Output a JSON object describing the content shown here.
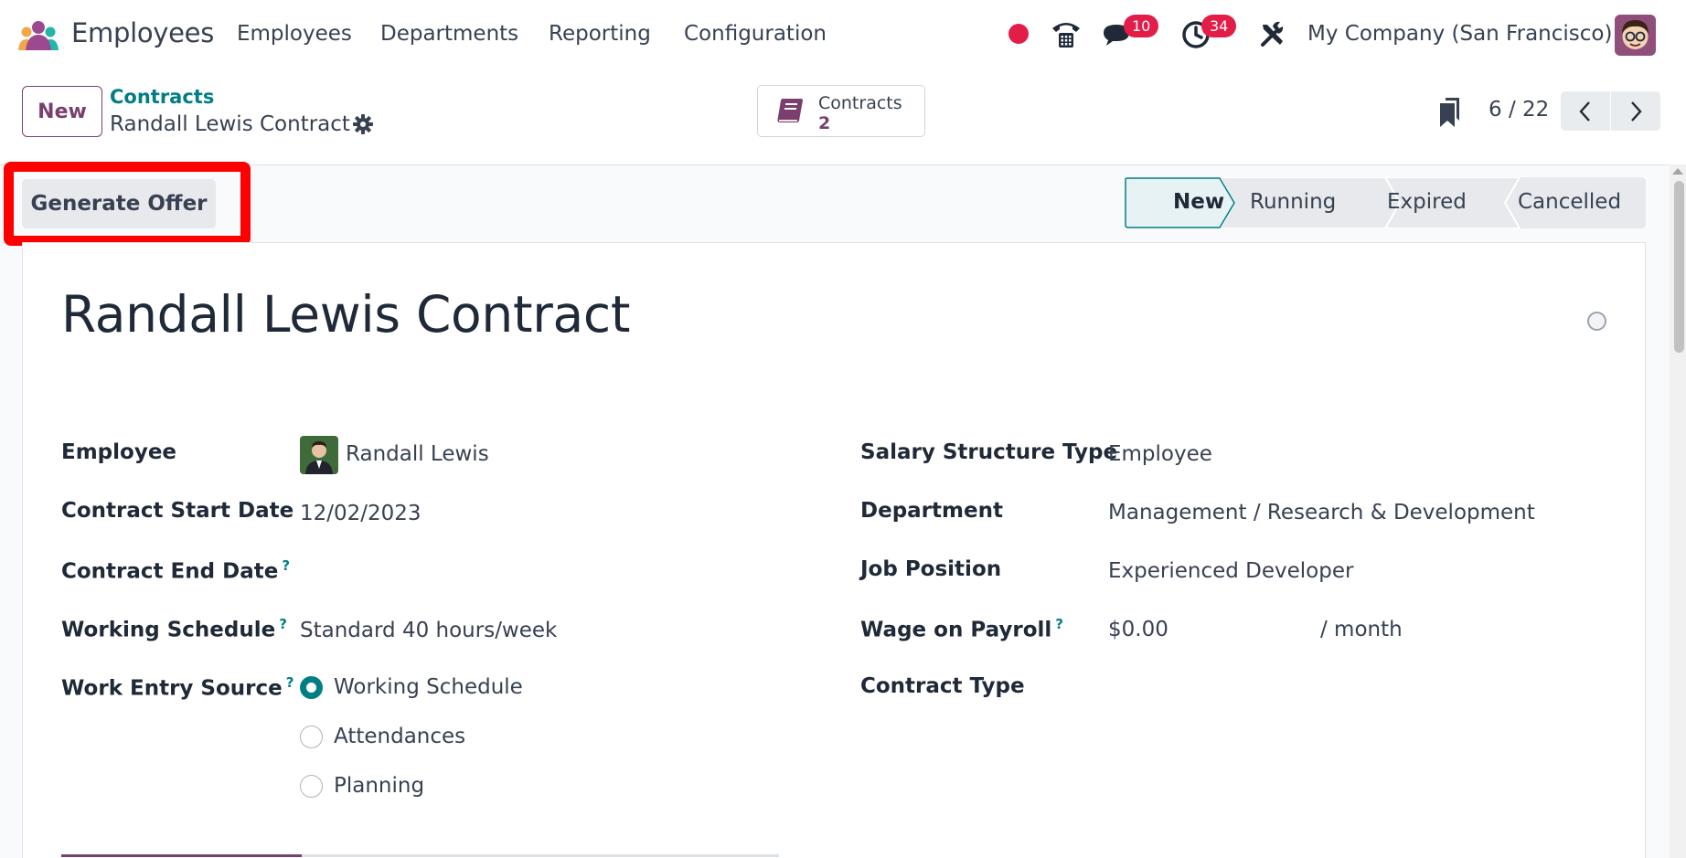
{
  "navbar": {
    "app_name": "Employees",
    "menu": [
      "Employees",
      "Departments",
      "Reporting",
      "Configuration"
    ],
    "messages_count": "10",
    "activities_count": "34",
    "company": "My Company (San Francisco)",
    "icons": [
      "apps-logo",
      "record-dot",
      "phone-icon",
      "chat-icon",
      "clock-icon",
      "tools-icon",
      "user-avatar"
    ],
    "colors": {
      "badge": "#e11d48",
      "record": "#e11d48"
    }
  },
  "control": {
    "new_label": "New",
    "breadcrumb_parent": "Contracts",
    "breadcrumb_current": "Randall Lewis Contract",
    "smart_button": {
      "title": "Contracts",
      "value": "2"
    },
    "pager": "6 / 22"
  },
  "statusbar": {
    "action_label": "Generate Offer",
    "stages": [
      "New",
      "Running",
      "Expired",
      "Cancelled"
    ],
    "active_stage": "New"
  },
  "form": {
    "title": "Randall Lewis Contract",
    "left_fields": {
      "employee": {
        "label": "Employee",
        "value": "Randall Lewis"
      },
      "start_date": {
        "label": "Contract Start Date",
        "value": "12/02/2023"
      },
      "end_date": {
        "label": "Contract End Date",
        "value": ""
      },
      "schedule": {
        "label": "Working Schedule",
        "value": "Standard 40 hours/week"
      },
      "work_entry": {
        "label": "Work Entry Source",
        "options": [
          "Working Schedule",
          "Attendances",
          "Planning"
        ],
        "selected": "Working Schedule"
      }
    },
    "right_fields": {
      "salary_type": {
        "label": "Salary Structure Type",
        "value": "Employee"
      },
      "department": {
        "label": "Department",
        "value": "Management / Research & Development"
      },
      "job": {
        "label": "Job Position",
        "value": "Experienced Developer"
      },
      "wage": {
        "label": "Wage on Payroll",
        "value": "$0.00",
        "unit": "/ month"
      },
      "contract_type": {
        "label": "Contract Type",
        "value": ""
      }
    },
    "help_mark": "?"
  },
  "theme": {
    "primary": "#7b3f6e",
    "teal": "#017e84",
    "highlight": "#ff0000"
  }
}
